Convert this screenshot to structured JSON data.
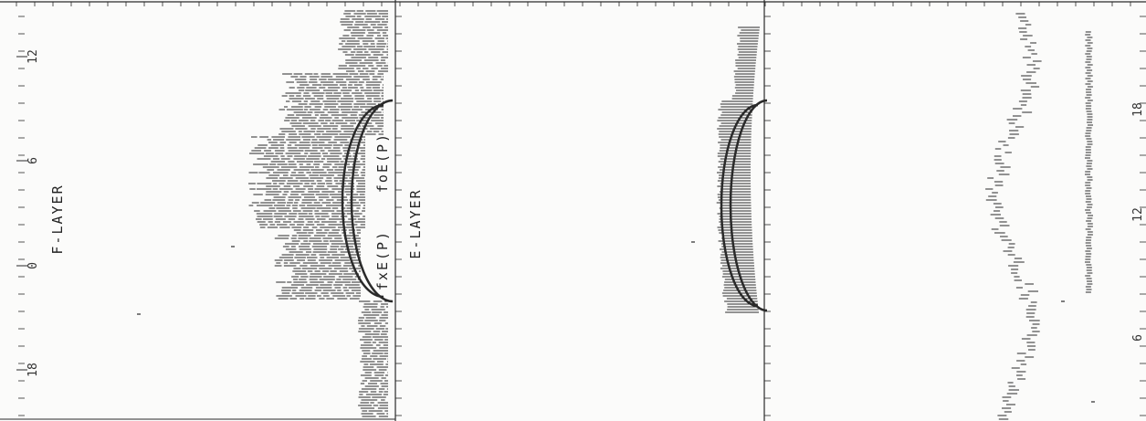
{
  "chart_data": {
    "type": "scatter",
    "panels": [
      {
        "layer_label": "F-LAYER",
        "curve_labels": [
          "fxE(P)",
          "foE(P)"
        ],
        "time_axis_ticks": [
          {
            "value": 12,
            "label": "12"
          },
          {
            "value": 6,
            "label": "6"
          },
          {
            "value": 0,
            "label": "0"
          },
          {
            "value": 18,
            "label": "18"
          }
        ]
      },
      {
        "layer_label": "E-LAYER"
      },
      {
        "right_tick_labels": [
          {
            "value": 18,
            "label": "18"
          },
          {
            "value": 12,
            "label": "12"
          },
          {
            "value": 6,
            "label": "6"
          }
        ]
      }
    ]
  },
  "colors": {
    "ink": "#2a2a2a",
    "paper": "#fbfbfa"
  }
}
